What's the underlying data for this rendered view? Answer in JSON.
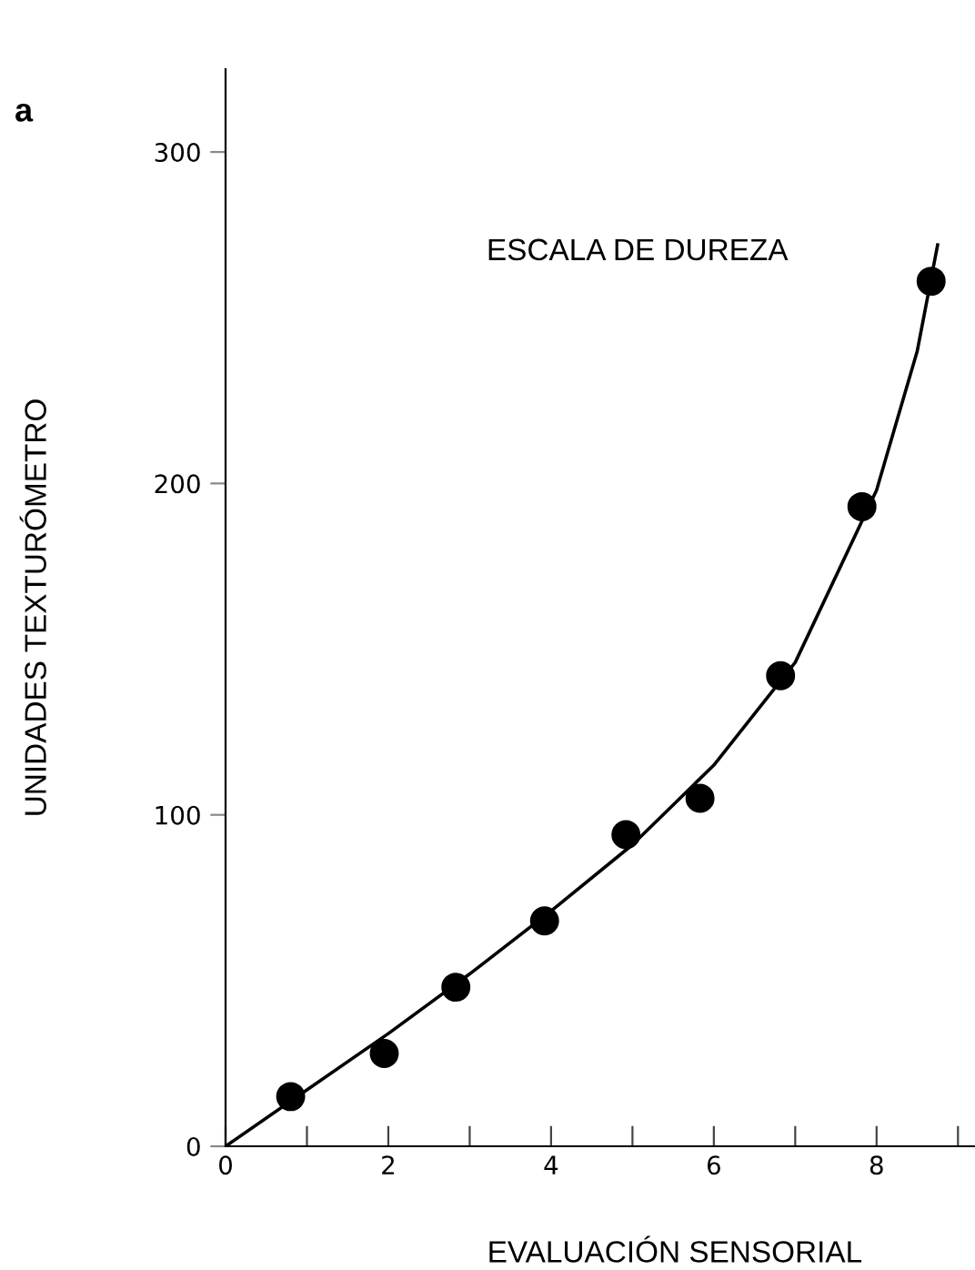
{
  "chart_data": {
    "type": "scatter",
    "title": "ESCALA DE DUREZA",
    "xlabel": "EVALUACIÓN SENSORIAL",
    "ylabel": "UNIDADES TEXTURÓMETRO",
    "annotations": [
      "a"
    ],
    "series": [
      {
        "color": "#000000",
        "marker": "circle",
        "x": [
          0.8,
          1.95,
          2.83,
          3.92,
          4.92,
          5.83,
          6.82,
          7.82,
          8.67
        ],
        "values": [
          15,
          28,
          48,
          68,
          94,
          105,
          142,
          193,
          261
        ]
      },
      {
        "type": "line",
        "color": "#000000",
        "marker": "none",
        "line_style": "solid",
        "x": [
          0,
          1,
          2,
          3,
          4,
          5,
          6,
          7,
          8,
          8.5,
          8.75
        ],
        "values": [
          0,
          17,
          34,
          52,
          71,
          91,
          115,
          146,
          198,
          240,
          272
        ]
      }
    ],
    "xlim": [
      0,
      9.2
    ],
    "ylim": [
      0,
      325
    ],
    "xticks": [
      0,
      {
        "value": 1,
        "label": null
      },
      2,
      {
        "value": 3,
        "label": null
      },
      4,
      {
        "value": 5,
        "label": null
      },
      6,
      {
        "value": 7,
        "label": null
      },
      8,
      {
        "value": 9,
        "label": null
      }
    ],
    "yticks": [
      0,
      100,
      200,
      300
    ],
    "grid": false,
    "legend": false
  }
}
